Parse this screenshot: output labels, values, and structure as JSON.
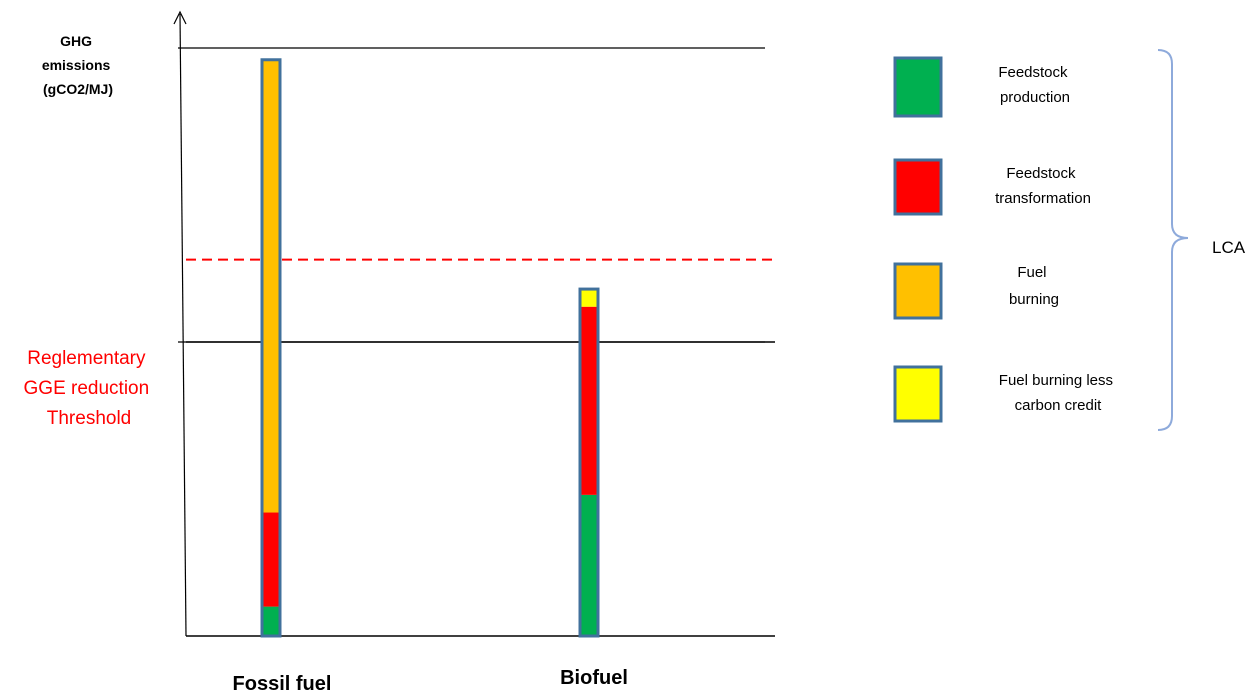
{
  "chart_data": {
    "type": "bar",
    "stacked": true,
    "ylabel_lines": [
      "GHG",
      "emissions",
      "(gCO2/MJ)"
    ],
    "categories": [
      "Fossil fuel",
      "Biofuel"
    ],
    "y_axis_tick_labels": "none",
    "ylim": [
      0,
      100
    ],
    "series": [
      {
        "name": "Feedstock production",
        "color": "#00b050",
        "values": [
          5,
          24
        ]
      },
      {
        "name": "Feedstock transformation",
        "color": "#ff0000",
        "values": [
          16,
          32
        ]
      },
      {
        "name": "Fuel burning",
        "color": "#ffc000",
        "values": [
          77,
          0
        ]
      },
      {
        "name": "Fuel burning less carbon credit",
        "color": "#ffff00",
        "values": [
          0,
          3
        ]
      }
    ],
    "bar_border_color": "#41719c",
    "horizontal_lines": [
      100,
      50
    ],
    "baseline": 0,
    "threshold": {
      "label_lines": [
        "Reglementary",
        "GGE reduction",
        "Threshold"
      ],
      "color": "#ff0000",
      "style": "dashed",
      "value": 64
    },
    "threshold_solid_line_value": 50,
    "lca_brace_label": "LCA",
    "legend_placement": "right",
    "legend": [
      {
        "lines": [
          "Feedstock",
          "production"
        ],
        "color": "#00b050"
      },
      {
        "lines": [
          "Feedstock",
          "transformation"
        ],
        "color": "#ff0000"
      },
      {
        "lines": [
          "Fuel",
          "burning"
        ],
        "color": "#ffc000"
      },
      {
        "lines": [
          "Fuel burning less",
          "carbon credit"
        ],
        "color": "#ffff00"
      }
    ]
  }
}
